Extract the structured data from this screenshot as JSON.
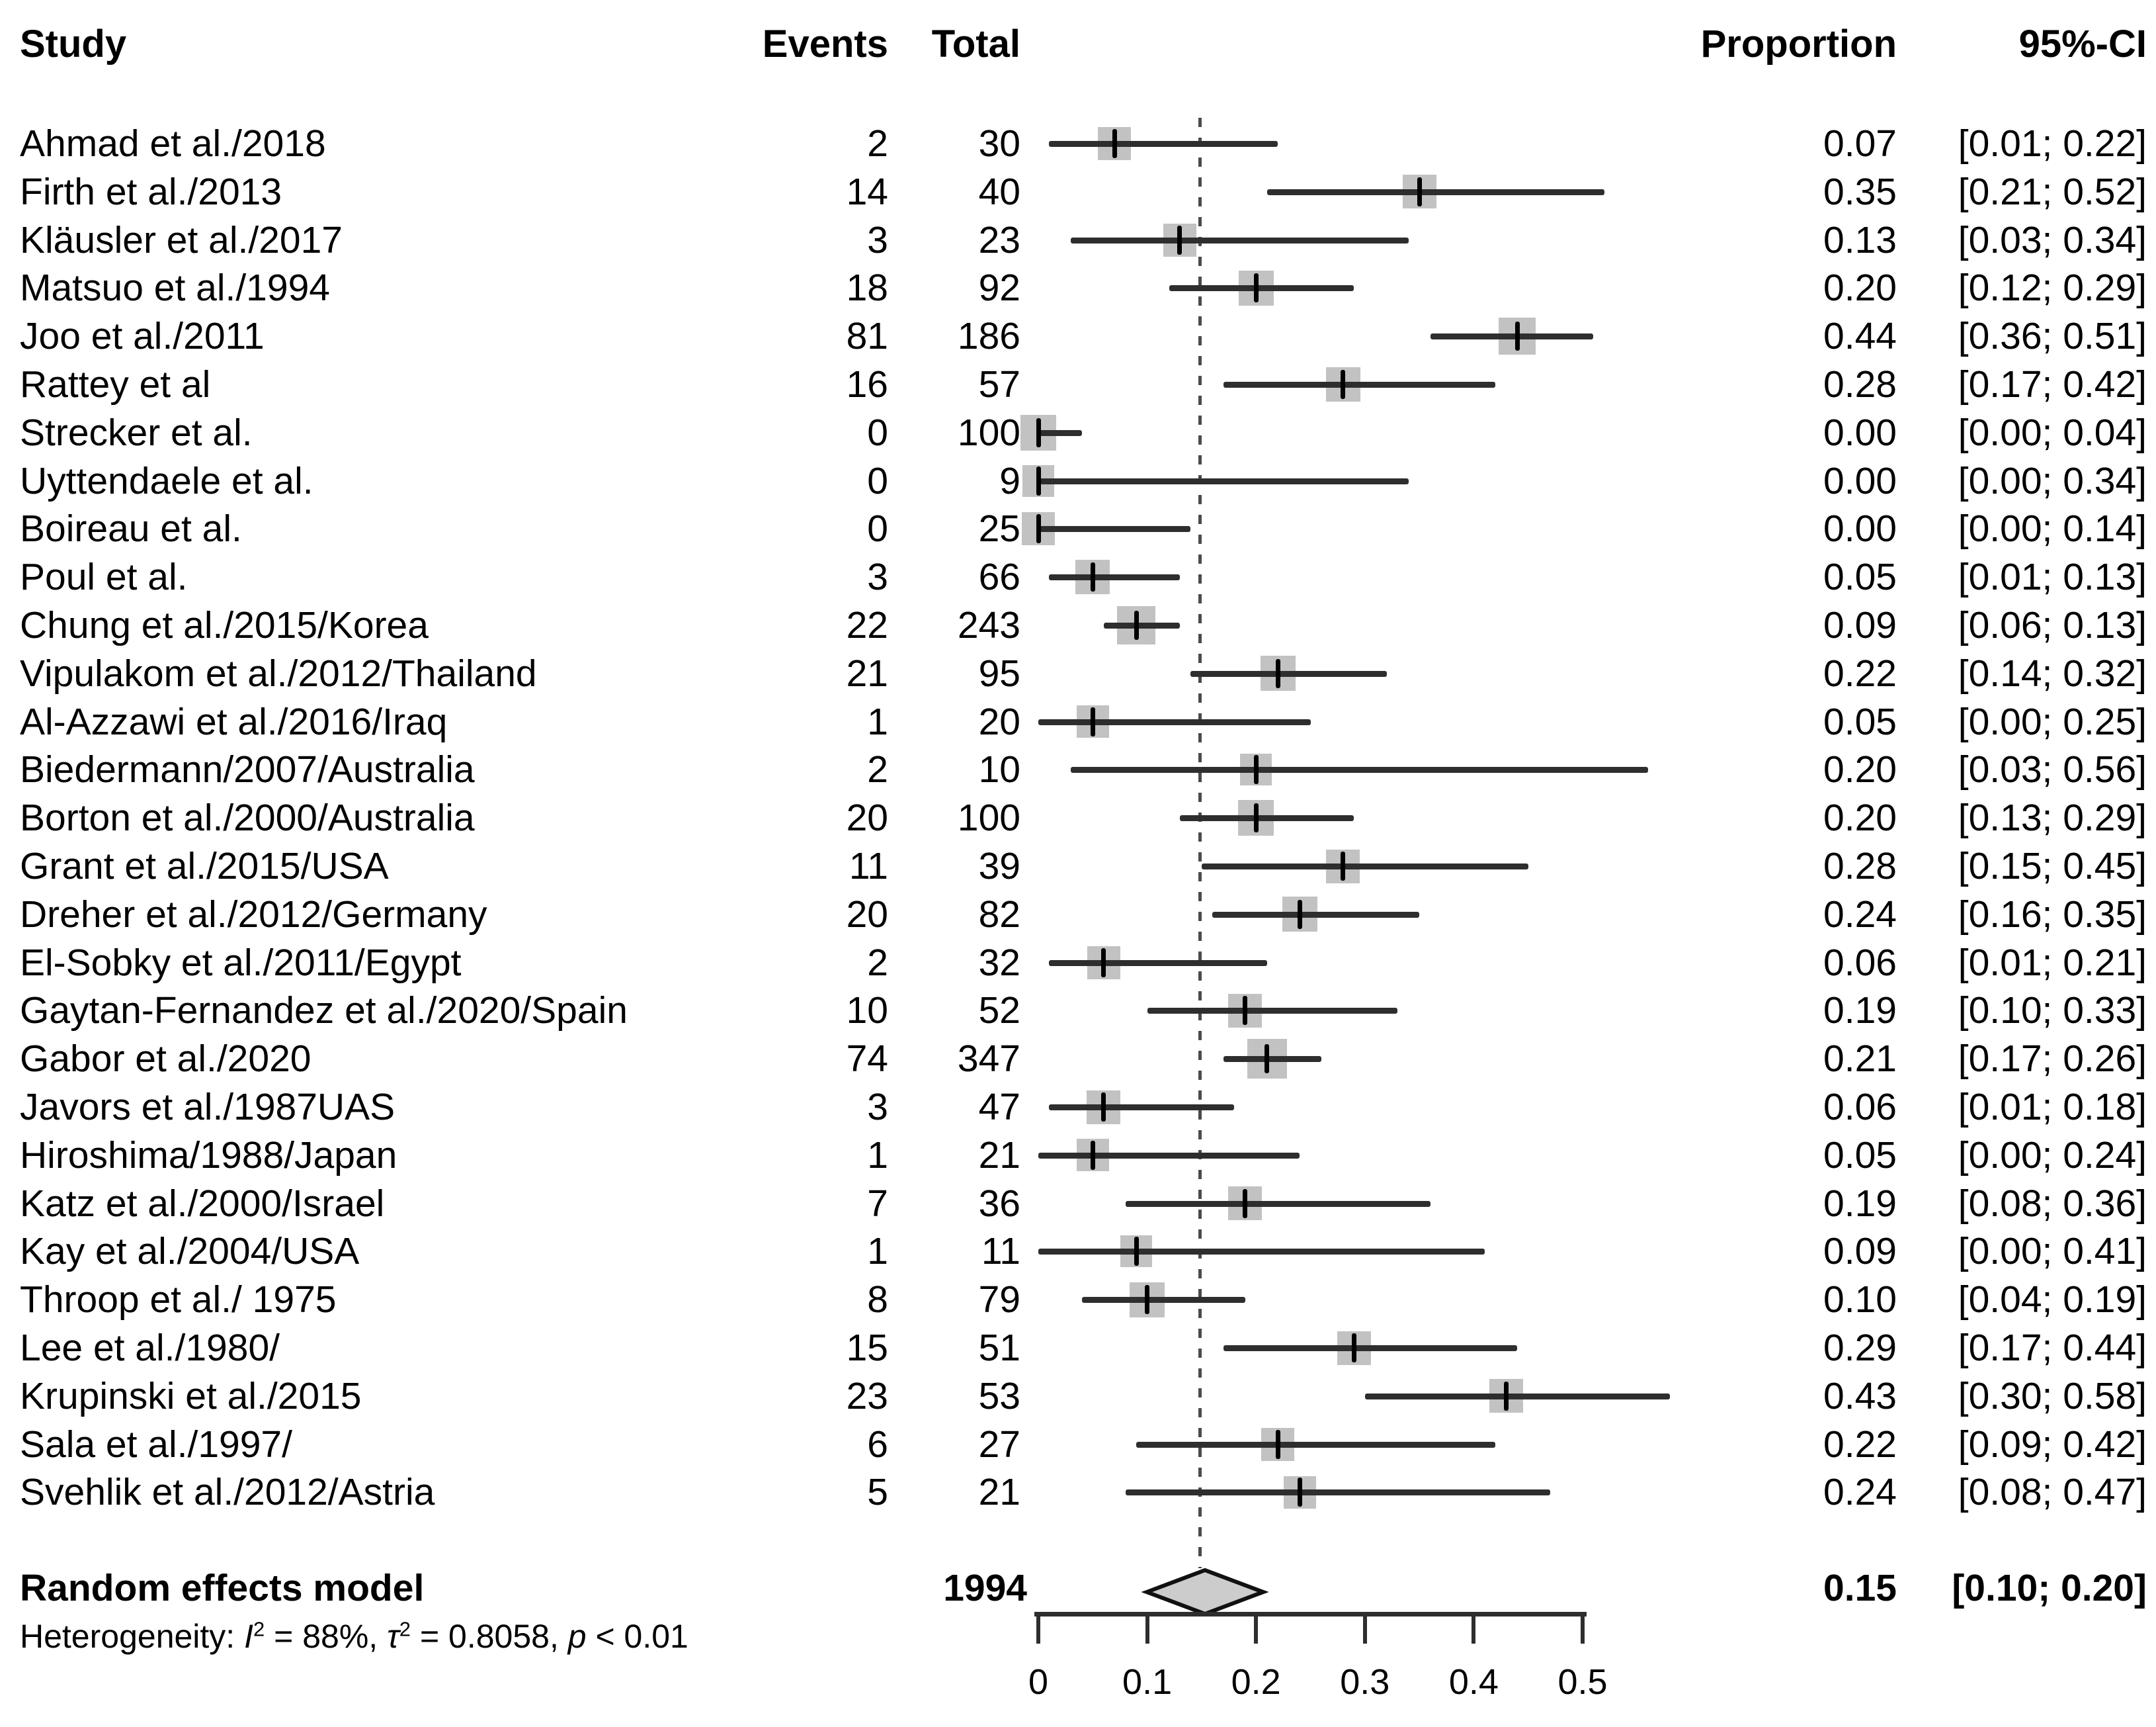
{
  "colors": {
    "background": "#ffffff",
    "text": "#000000",
    "ci_line": "#2e2e2e",
    "weight_square": "#c2c2c2",
    "diamond_fill": "#cccccc",
    "diamond_stroke": "#111111",
    "reference_line": "#4b4b4b"
  },
  "header": {
    "study": "Study",
    "events": "Events",
    "total": "Total",
    "proportion": "Proportion",
    "ci": "95%-CI"
  },
  "summary": {
    "label": "Random effects model",
    "total_text": "1994",
    "proportion_text": "0.15",
    "ci_text": "[0.10; 0.20]"
  },
  "heterogeneity": {
    "prefix": "Heterogeneity: ",
    "i_symbol": "I",
    "i_sup": "2",
    "i_rest": " = 88%, ",
    "tau_symbol": "τ",
    "tau_sup": "2",
    "tau_rest": " = 0.8058, ",
    "p_symbol": "p",
    "p_rest": " < 0.01"
  },
  "chart_data": {
    "type": "scatter",
    "subtype": "forest-plot-meta-analysis",
    "title": "",
    "xlabel": "",
    "xlim": [
      0,
      0.58
    ],
    "x_ticks": [
      0,
      0.1,
      0.2,
      0.3,
      0.4,
      0.5
    ],
    "x_tick_labels": [
      "0",
      "0.1",
      "0.2",
      "0.3",
      "0.4",
      "0.5"
    ],
    "reference_line_x": 0.15,
    "grid": false,
    "columns": [
      "Study",
      "Events",
      "Total",
      "Proportion",
      "95%-CI"
    ],
    "studies": [
      {
        "label": "Ahmad et al./2018",
        "events": 2,
        "total": 30,
        "proportion": 0.07,
        "ci_low": 0.01,
        "ci_high": 0.22,
        "proportion_text": "0.07",
        "ci_text": "[0.01; 0.22]"
      },
      {
        "label": "Firth et al./2013",
        "events": 14,
        "total": 40,
        "proportion": 0.35,
        "ci_low": 0.21,
        "ci_high": 0.52,
        "proportion_text": "0.35",
        "ci_text": "[0.21; 0.52]"
      },
      {
        "label": "Kläusler et al./2017",
        "events": 3,
        "total": 23,
        "proportion": 0.13,
        "ci_low": 0.03,
        "ci_high": 0.34,
        "proportion_text": "0.13",
        "ci_text": "[0.03; 0.34]"
      },
      {
        "label": "Matsuo et al./1994",
        "events": 18,
        "total": 92,
        "proportion": 0.2,
        "ci_low": 0.12,
        "ci_high": 0.29,
        "proportion_text": "0.20",
        "ci_text": "[0.12; 0.29]"
      },
      {
        "label": "Joo et al./2011",
        "events": 81,
        "total": 186,
        "proportion": 0.44,
        "ci_low": 0.36,
        "ci_high": 0.51,
        "proportion_text": "0.44",
        "ci_text": "[0.36; 0.51]"
      },
      {
        "label": "Rattey et al",
        "events": 16,
        "total": 57,
        "proportion": 0.28,
        "ci_low": 0.17,
        "ci_high": 0.42,
        "proportion_text": "0.28",
        "ci_text": "[0.17; 0.42]"
      },
      {
        "label": "Strecker et al.",
        "events": 0,
        "total": 100,
        "proportion": 0.0,
        "ci_low": 0.0,
        "ci_high": 0.04,
        "proportion_text": "0.00",
        "ci_text": "[0.00; 0.04]"
      },
      {
        "label": "Uyttendaele et al.",
        "events": 0,
        "total": 9,
        "proportion": 0.0,
        "ci_low": 0.0,
        "ci_high": 0.34,
        "proportion_text": "0.00",
        "ci_text": "[0.00; 0.34]"
      },
      {
        "label": "Boireau et al.",
        "events": 0,
        "total": 25,
        "proportion": 0.0,
        "ci_low": 0.0,
        "ci_high": 0.14,
        "proportion_text": "0.00",
        "ci_text": "[0.00; 0.14]"
      },
      {
        "label": "Poul et al.",
        "events": 3,
        "total": 66,
        "proportion": 0.05,
        "ci_low": 0.01,
        "ci_high": 0.13,
        "proportion_text": "0.05",
        "ci_text": "[0.01; 0.13]"
      },
      {
        "label": "Chung et al./2015/Korea",
        "events": 22,
        "total": 243,
        "proportion": 0.09,
        "ci_low": 0.06,
        "ci_high": 0.13,
        "proportion_text": "0.09",
        "ci_text": "[0.06; 0.13]"
      },
      {
        "label": "Vipulakom et al./2012/Thailand",
        "events": 21,
        "total": 95,
        "proportion": 0.22,
        "ci_low": 0.14,
        "ci_high": 0.32,
        "proportion_text": "0.22",
        "ci_text": "[0.14; 0.32]"
      },
      {
        "label": "Al-Azzawi et al./2016/Iraq",
        "events": 1,
        "total": 20,
        "proportion": 0.05,
        "ci_low": 0.0,
        "ci_high": 0.25,
        "proportion_text": "0.05",
        "ci_text": "[0.00; 0.25]"
      },
      {
        "label": "Biedermann/2007/Australia",
        "events": 2,
        "total": 10,
        "proportion": 0.2,
        "ci_low": 0.03,
        "ci_high": 0.56,
        "proportion_text": "0.20",
        "ci_text": "[0.03; 0.56]"
      },
      {
        "label": "Borton et al./2000/Australia",
        "events": 20,
        "total": 100,
        "proportion": 0.2,
        "ci_low": 0.13,
        "ci_high": 0.29,
        "proportion_text": "0.20",
        "ci_text": "[0.13; 0.29]"
      },
      {
        "label": "Grant et al./2015/USA",
        "events": 11,
        "total": 39,
        "proportion": 0.28,
        "ci_low": 0.15,
        "ci_high": 0.45,
        "proportion_text": "0.28",
        "ci_text": "[0.15; 0.45]"
      },
      {
        "label": "Dreher et al./2012/Germany",
        "events": 20,
        "total": 82,
        "proportion": 0.24,
        "ci_low": 0.16,
        "ci_high": 0.35,
        "proportion_text": "0.24",
        "ci_text": "[0.16; 0.35]"
      },
      {
        "label": "El-Sobky et al./2011/Egypt",
        "events": 2,
        "total": 32,
        "proportion": 0.06,
        "ci_low": 0.01,
        "ci_high": 0.21,
        "proportion_text": "0.06",
        "ci_text": "[0.01; 0.21]"
      },
      {
        "label": "Gaytan-Fernandez et al./2020/Spain",
        "events": 10,
        "total": 52,
        "proportion": 0.19,
        "ci_low": 0.1,
        "ci_high": 0.33,
        "proportion_text": "0.19",
        "ci_text": "[0.10; 0.33]"
      },
      {
        "label": "Gabor et al./2020",
        "events": 74,
        "total": 347,
        "proportion": 0.21,
        "ci_low": 0.17,
        "ci_high": 0.26,
        "proportion_text": "0.21",
        "ci_text": "[0.17; 0.26]"
      },
      {
        "label": "Javors et al./1987UAS",
        "events": 3,
        "total": 47,
        "proportion": 0.06,
        "ci_low": 0.01,
        "ci_high": 0.18,
        "proportion_text": "0.06",
        "ci_text": "[0.01; 0.18]"
      },
      {
        "label": "Hiroshima/1988/Japan",
        "events": 1,
        "total": 21,
        "proportion": 0.05,
        "ci_low": 0.0,
        "ci_high": 0.24,
        "proportion_text": "0.05",
        "ci_text": "[0.00; 0.24]"
      },
      {
        "label": "Katz et al./2000/Israel",
        "events": 7,
        "total": 36,
        "proportion": 0.19,
        "ci_low": 0.08,
        "ci_high": 0.36,
        "proportion_text": "0.19",
        "ci_text": "[0.08; 0.36]"
      },
      {
        "label": "Kay et al./2004/USA",
        "events": 1,
        "total": 11,
        "proportion": 0.09,
        "ci_low": 0.0,
        "ci_high": 0.41,
        "proportion_text": "0.09",
        "ci_text": "[0.00; 0.41]"
      },
      {
        "label": "Throop et al./ 1975",
        "events": 8,
        "total": 79,
        "proportion": 0.1,
        "ci_low": 0.04,
        "ci_high": 0.19,
        "proportion_text": "0.10",
        "ci_text": "[0.04; 0.19]"
      },
      {
        "label": "Lee et al./1980/",
        "events": 15,
        "total": 51,
        "proportion": 0.29,
        "ci_low": 0.17,
        "ci_high": 0.44,
        "proportion_text": "0.29",
        "ci_text": "[0.17; 0.44]"
      },
      {
        "label": "Krupinski et al./2015",
        "events": 23,
        "total": 53,
        "proportion": 0.43,
        "ci_low": 0.3,
        "ci_high": 0.58,
        "proportion_text": "0.43",
        "ci_text": "[0.30; 0.58]"
      },
      {
        "label": "Sala et al./1997/",
        "events": 6,
        "total": 27,
        "proportion": 0.22,
        "ci_low": 0.09,
        "ci_high": 0.42,
        "proportion_text": "0.22",
        "ci_text": "[0.09; 0.42]"
      },
      {
        "label": "Svehlik et al./2012/Astria",
        "events": 5,
        "total": 21,
        "proportion": 0.24,
        "ci_low": 0.08,
        "ci_high": 0.47,
        "proportion_text": "0.24",
        "ci_text": "[0.08; 0.47]"
      }
    ],
    "summary": {
      "label": "Random effects model",
      "total": 1994,
      "proportion": 0.15,
      "ci_low": 0.1,
      "ci_high": 0.2
    },
    "heterogeneity_text": "Heterogeneity: I2 = 88%, τ2 = 0.8058, p < 0.01",
    "legend_position": "none"
  }
}
